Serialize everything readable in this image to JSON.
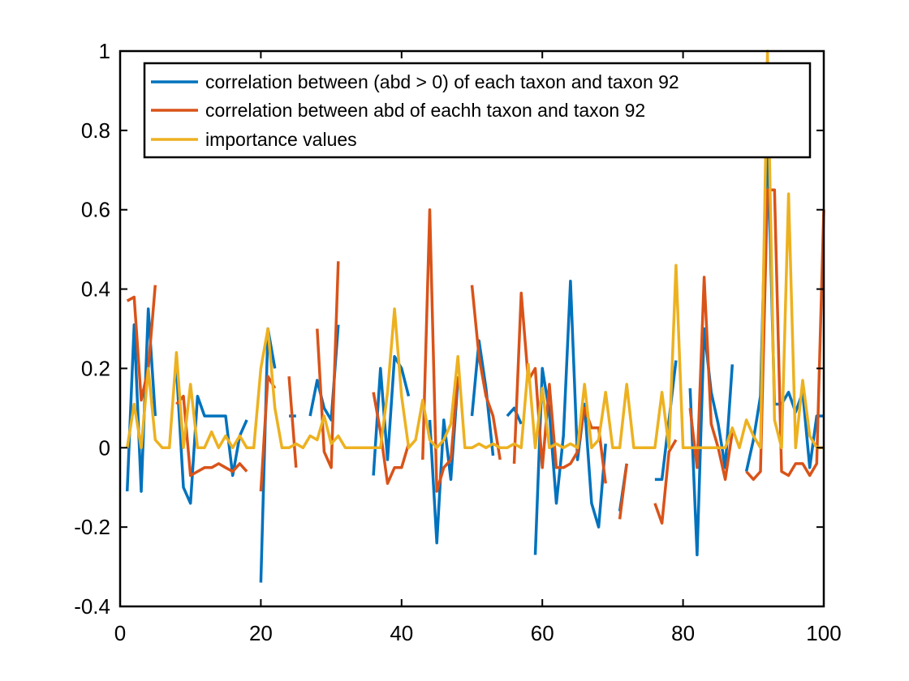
{
  "chart_data": {
    "type": "line",
    "title": "",
    "xlabel": "",
    "ylabel": "",
    "xlim": [
      0,
      100
    ],
    "ylim": [
      -0.4,
      1
    ],
    "xticks": [
      0,
      20,
      40,
      60,
      80,
      100
    ],
    "xtick_labels": [
      "0",
      "20",
      "40",
      "60",
      "80",
      "100"
    ],
    "yticks": [
      -0.4,
      -0.2,
      0,
      0.2,
      0.4,
      0.6,
      0.8,
      1
    ],
    "ytick_labels": [
      "-0.4",
      "-0.2",
      "0",
      "0.2",
      "0.4",
      "0.6",
      "0.8",
      "1"
    ],
    "grid": false,
    "legend_position": "top-right",
    "x": [
      1,
      2,
      3,
      4,
      5,
      6,
      7,
      8,
      9,
      10,
      11,
      12,
      13,
      14,
      15,
      16,
      17,
      18,
      19,
      20,
      21,
      22,
      23,
      24,
      25,
      26,
      27,
      28,
      29,
      30,
      31,
      32,
      33,
      34,
      35,
      36,
      37,
      38,
      39,
      40,
      41,
      42,
      43,
      44,
      45,
      46,
      47,
      48,
      49,
      50,
      51,
      52,
      53,
      54,
      55,
      56,
      57,
      58,
      59,
      60,
      61,
      62,
      63,
      64,
      65,
      66,
      67,
      68,
      69,
      70,
      71,
      72,
      73,
      74,
      75,
      76,
      77,
      78,
      79,
      80,
      81,
      82,
      83,
      84,
      85,
      86,
      87,
      88,
      89,
      90,
      91,
      92,
      93,
      94,
      95,
      96,
      97,
      98,
      99,
      100
    ],
    "series": [
      {
        "name": "correlation between (abd > 0) of each taxon and taxon 92",
        "color": "#0072BD",
        "values": [
          -0.11,
          0.31,
          -0.11,
          0.35,
          0.08,
          null,
          null,
          0.2,
          -0.1,
          -0.14,
          0.13,
          0.08,
          0.08,
          0.08,
          0.08,
          -0.07,
          0.03,
          0.07,
          null,
          -0.34,
          0.3,
          0.2,
          null,
          0.08,
          0.08,
          null,
          0.08,
          0.17,
          0.1,
          0.07,
          0.31,
          null,
          null,
          null,
          null,
          -0.07,
          0.2,
          -0.03,
          0.23,
          0.2,
          0.13,
          null,
          null,
          0.07,
          -0.24,
          0.07,
          -0.08,
          0.17,
          null,
          0.08,
          0.27,
          0.15,
          -0.02,
          null,
          0.08,
          0.1,
          0.06,
          null,
          -0.27,
          0.2,
          0.09,
          -0.14,
          0.03,
          0.42,
          -0.03,
          0.11,
          -0.14,
          -0.2,
          0.01,
          null,
          -0.16,
          -0.04,
          null,
          null,
          null,
          -0.08,
          -0.08,
          0.07,
          0.22,
          null,
          0.15,
          -0.27,
          0.3,
          0.14,
          0.06,
          -0.05,
          0.21,
          null,
          -0.06,
          0.02,
          0.13,
          0.8,
          0.11,
          0.11,
          0.14,
          0.09,
          0.14,
          -0.05,
          0.08,
          0.08
        ]
      },
      {
        "name": "correlation between abd of eachh taxon and taxon 92",
        "color": "#D95319",
        "values": [
          0.37,
          0.38,
          0.12,
          0.2,
          0.41,
          null,
          null,
          0.11,
          0.13,
          -0.07,
          -0.06,
          -0.05,
          -0.05,
          -0.04,
          -0.05,
          -0.06,
          -0.04,
          -0.06,
          null,
          -0.11,
          0.18,
          0.15,
          null,
          0.18,
          -0.05,
          null,
          null,
          0.3,
          -0.01,
          -0.05,
          0.47,
          null,
          null,
          null,
          null,
          0.14,
          0.04,
          -0.09,
          -0.05,
          -0.05,
          0.01,
          null,
          -0.03,
          0.6,
          -0.11,
          -0.05,
          -0.03,
          0.18,
          null,
          0.41,
          0.23,
          0.13,
          0.08,
          -0.03,
          null,
          -0.04,
          0.39,
          0.17,
          0.2,
          -0.05,
          0.16,
          -0.05,
          -0.05,
          -0.04,
          -0.01,
          0.1,
          0.05,
          0.05,
          -0.09,
          null,
          -0.18,
          -0.04,
          null,
          null,
          null,
          -0.14,
          -0.19,
          -0.01,
          0.02,
          null,
          0.1,
          -0.05,
          0.43,
          0.06,
          0,
          -0.08,
          0.04,
          null,
          -0.06,
          -0.08,
          -0.06,
          0.65,
          0.65,
          -0.06,
          -0.07,
          -0.04,
          -0.04,
          -0.07,
          -0.04,
          0.6
        ]
      },
      {
        "name": "importance values",
        "color": "#EDB120",
        "values": [
          0,
          0.11,
          0,
          0.2,
          0.02,
          0,
          0,
          0.24,
          0,
          0.16,
          0,
          0,
          0.04,
          0,
          0.03,
          0,
          0.03,
          0,
          0,
          0.2,
          0.3,
          0.1,
          0,
          0,
          0.01,
          0,
          0.03,
          0.02,
          0.08,
          0.01,
          0.03,
          0,
          0,
          0,
          0,
          0,
          0,
          0.14,
          0.35,
          0.13,
          0,
          0.02,
          0.12,
          0.02,
          0,
          0.02,
          0.06,
          0.23,
          0,
          0,
          0.01,
          0,
          0.01,
          0,
          0,
          0.01,
          0,
          0.21,
          0,
          0.15,
          0,
          0.01,
          0,
          0.01,
          0,
          0.16,
          0,
          0.02,
          0.14,
          0,
          0,
          0.16,
          0,
          0,
          0,
          0,
          0.14,
          0,
          0.46,
          0,
          0,
          0,
          0,
          0,
          0,
          0,
          0.05,
          0,
          0.07,
          0.03,
          0,
          1,
          0.07,
          0,
          0.64,
          0,
          0.17,
          0.03,
          0,
          0
        ]
      }
    ]
  }
}
